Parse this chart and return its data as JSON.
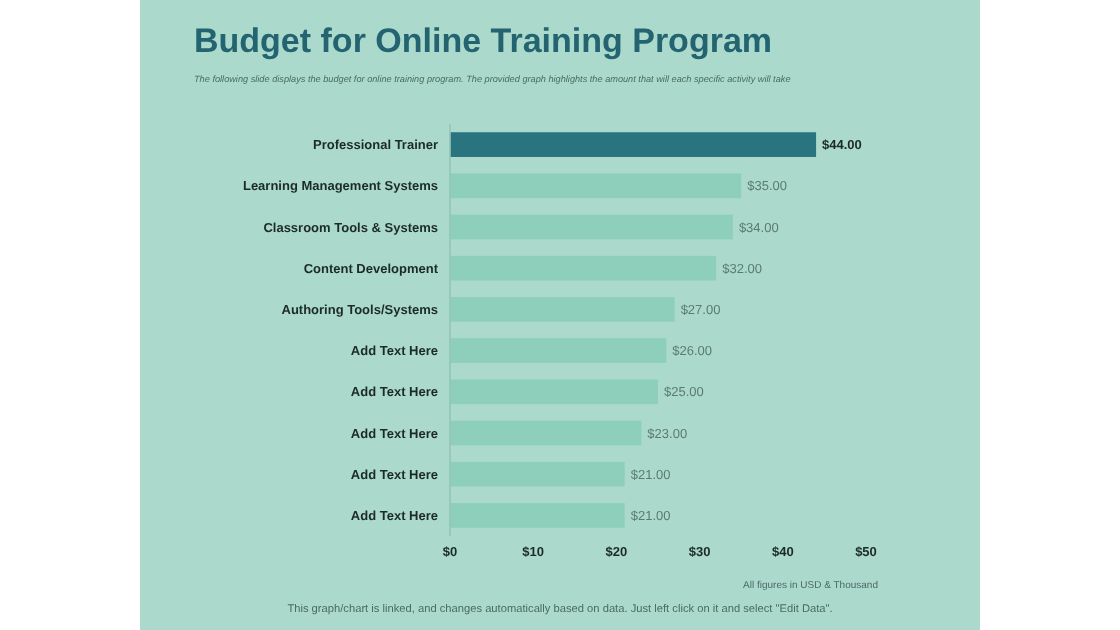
{
  "chart_data": {
    "type": "bar",
    "orientation": "horizontal",
    "title": "Budget for Online Training Program",
    "subtitle": "The following slide displays the budget for online training program.  The provided graph highlights the amount that will each specific activity will take",
    "categories": [
      "Professional Trainer",
      "Learning Management Systems",
      "Classroom Tools & Systems",
      "Content Development",
      "Authoring Tools/Systems",
      "Add Text Here",
      "Add Text Here",
      "Add Text Here",
      "Add Text Here",
      "Add Text Here"
    ],
    "values": [
      44,
      35,
      34,
      32,
      27,
      26,
      25,
      23,
      21,
      21
    ],
    "colors": [
      "#2a7480",
      "#8ecfbc",
      "#8ecfbc",
      "#8ecfbc",
      "#8ecfbc",
      "#8ecfbc",
      "#8ecfbc",
      "#8ecfbc",
      "#8ecfbc",
      "#8ecfbc"
    ],
    "value_labels": [
      "$44.00",
      "$35.00",
      "$34.00",
      "$32.00",
      "$27.00",
      "$26.00",
      "$25.00",
      "$23.00",
      "$21.00",
      "$21.00"
    ],
    "xlim": [
      0,
      50
    ],
    "xticks": [
      {
        "value": 0,
        "label": "$0"
      },
      {
        "value": 10,
        "label": "$10"
      },
      {
        "value": 20,
        "label": "$20"
      },
      {
        "value": 30,
        "label": "$30"
      },
      {
        "value": 40,
        "label": "$40"
      },
      {
        "value": 50,
        "label": "$50"
      }
    ],
    "grid": false,
    "annotations": [
      "All figures  in USD & Thousand",
      "This graph/chart is linked, and changes automatically based on data. Just left click on it and select \"Edit Data\"."
    ]
  }
}
